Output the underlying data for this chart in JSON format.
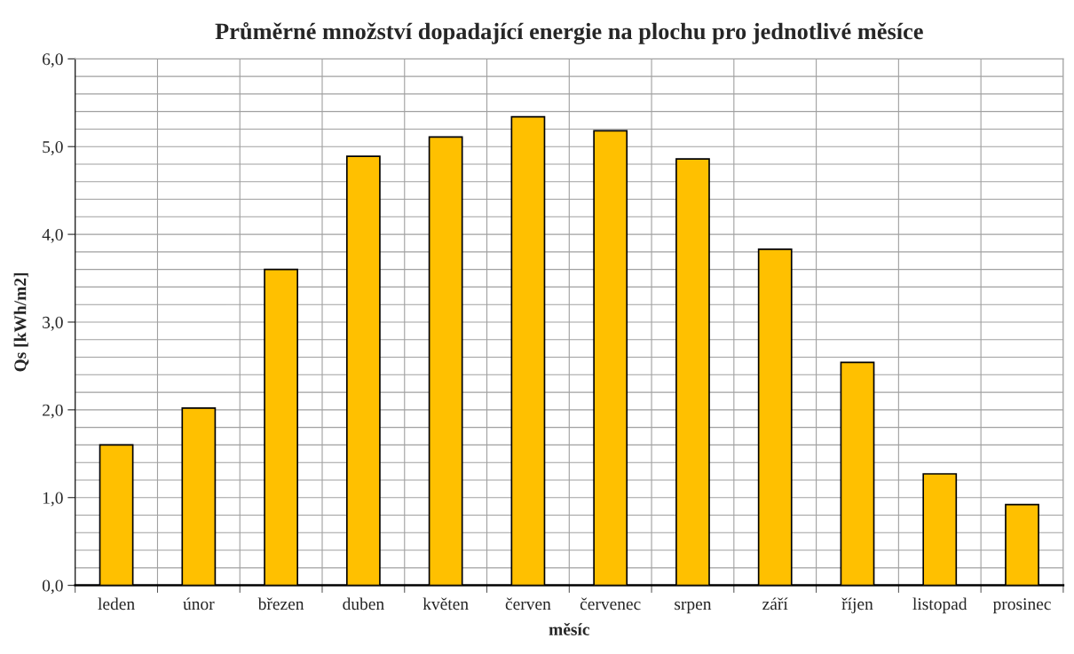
{
  "chart_data": {
    "type": "bar",
    "title": "Průměrné množství dopadající energie na plochu pro jednotlivé měsíce",
    "xlabel": "měsíc",
    "ylabel": "Qs [kWh/m2]",
    "categories": [
      "leden",
      "únor",
      "březen",
      "duben",
      "květen",
      "červen",
      "červenec",
      "srpen",
      "září",
      "říjen",
      "listopad",
      "prosinec"
    ],
    "values": [
      1.6,
      2.02,
      3.6,
      4.89,
      5.11,
      5.34,
      5.18,
      4.86,
      3.83,
      2.54,
      1.27,
      0.92
    ],
    "color": "#ffc000",
    "ylim": [
      0,
      6
    ],
    "yticks": [
      {
        "value": 0,
        "label": "0,0"
      },
      {
        "value": 1,
        "label": "1,0"
      },
      {
        "value": 2,
        "label": "2,0"
      },
      {
        "value": 3,
        "label": "3,0"
      },
      {
        "value": 4,
        "label": "4,0"
      },
      {
        "value": 5,
        "label": "5,0"
      },
      {
        "value": 6,
        "label": "6,0"
      }
    ],
    "grid": true,
    "legend": false
  }
}
